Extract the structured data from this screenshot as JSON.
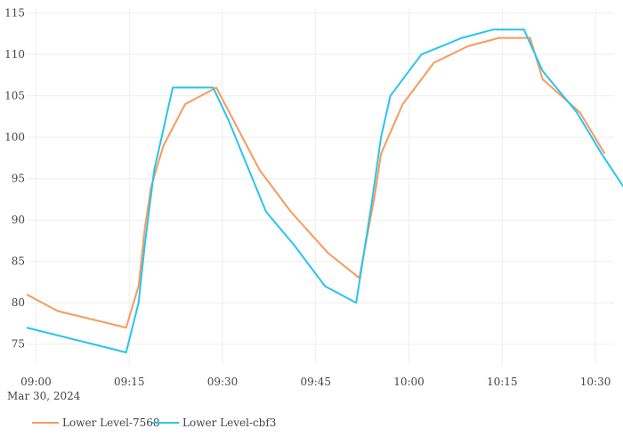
{
  "chart_data": {
    "type": "line",
    "x_axis": {
      "tick_labels": [
        "09:00",
        "09:15",
        "09:30",
        "09:45",
        "10:00",
        "10:15",
        "10:30"
      ],
      "tick_minutes": [
        0,
        15,
        30,
        45,
        60,
        75,
        90
      ],
      "date_label": "Mar 30, 2024",
      "range_minutes": [
        -1.5,
        93
      ]
    },
    "y_axis": {
      "ticks": [
        75,
        80,
        85,
        90,
        95,
        100,
        105,
        110,
        115
      ],
      "range": [
        72.5,
        115.5
      ]
    },
    "grid": true,
    "legend": {
      "position": "bottom-left"
    },
    "series": [
      {
        "name": "Lower Level-7568",
        "color": "#f79a5e",
        "points": [
          [
            -1.5,
            81
          ],
          [
            3.5,
            79
          ],
          [
            14.5,
            77
          ],
          [
            16.5,
            82
          ],
          [
            17.5,
            89
          ],
          [
            18.5,
            94
          ],
          [
            20.5,
            99
          ],
          [
            24.0,
            104
          ],
          [
            29.0,
            106
          ],
          [
            36.0,
            96
          ],
          [
            41.0,
            91
          ],
          [
            47.0,
            86
          ],
          [
            52.0,
            83
          ],
          [
            54.5,
            93
          ],
          [
            55.5,
            98
          ],
          [
            59.0,
            104
          ],
          [
            64.0,
            109
          ],
          [
            69.5,
            111
          ],
          [
            74.5,
            112
          ],
          [
            79.5,
            112
          ],
          [
            81.5,
            107
          ],
          [
            87.5,
            103
          ],
          [
            91.5,
            98
          ]
        ]
      },
      {
        "name": "Lower Level-cbf3",
        "color": "#29c4ec",
        "points": [
          [
            -1.5,
            77
          ],
          [
            14.5,
            74
          ],
          [
            16.5,
            80
          ],
          [
            17.5,
            87
          ],
          [
            19.0,
            96
          ],
          [
            20.5,
            101
          ],
          [
            22.0,
            106
          ],
          [
            28.5,
            106
          ],
          [
            31.0,
            102
          ],
          [
            37.0,
            91
          ],
          [
            41.5,
            87
          ],
          [
            46.5,
            82
          ],
          [
            51.5,
            80
          ],
          [
            54.0,
            92
          ],
          [
            55.5,
            100
          ],
          [
            57.0,
            105
          ],
          [
            62.0,
            110
          ],
          [
            68.5,
            112
          ],
          [
            73.5,
            113
          ],
          [
            78.5,
            113
          ],
          [
            81.5,
            108
          ],
          [
            87.0,
            103
          ],
          [
            91.0,
            98
          ],
          [
            94.5,
            94
          ]
        ]
      }
    ]
  }
}
